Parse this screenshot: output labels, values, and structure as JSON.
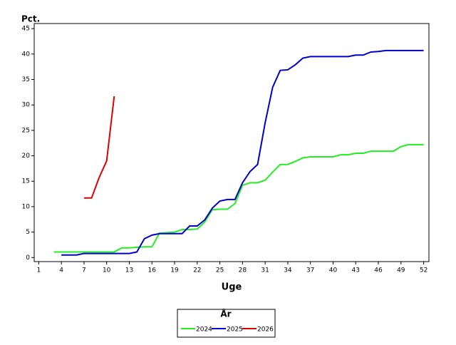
{
  "chart_data": {
    "type": "line",
    "y_label": "Pct.",
    "x_label": "Uge",
    "legend_title": "År",
    "x": [
      1,
      2,
      3,
      4,
      5,
      6,
      7,
      8,
      9,
      10,
      11,
      12,
      13,
      14,
      15,
      16,
      17,
      18,
      19,
      20,
      21,
      22,
      23,
      24,
      25,
      26,
      27,
      28,
      29,
      30,
      31,
      32,
      33,
      34,
      35,
      36,
      37,
      38,
      39,
      40,
      41,
      42,
      43,
      44,
      45,
      46,
      47,
      48,
      49,
      50,
      51,
      52
    ],
    "xlim": [
      0.4,
      52.7
    ],
    "ylim": [
      -0.8,
      46
    ],
    "xticks": [
      1,
      4,
      7,
      10,
      13,
      16,
      19,
      22,
      25,
      28,
      31,
      34,
      37,
      40,
      43,
      46,
      49,
      52
    ],
    "yticks": [
      0,
      5,
      10,
      15,
      20,
      25,
      30,
      35,
      40,
      45
    ],
    "legend": "bottom",
    "series": [
      {
        "name": "2024",
        "color": "#22ee22",
        "values": [
          null,
          null,
          1.1,
          1.1,
          1.1,
          1.1,
          1.1,
          1.1,
          1.1,
          1.1,
          1.1,
          1.9,
          1.9,
          2.0,
          2.1,
          2.1,
          4.8,
          4.9,
          5.0,
          5.5,
          5.5,
          5.6,
          7.0,
          9.4,
          9.5,
          9.5,
          10.6,
          14.2,
          14.7,
          14.7,
          15.2,
          16.8,
          18.3,
          18.3,
          18.9,
          19.6,
          19.8,
          19.8,
          19.8,
          19.8,
          20.2,
          20.2,
          20.5,
          20.5,
          20.9,
          20.9,
          20.9,
          20.9,
          21.8,
          22.2,
          22.2,
          22.2
        ]
      },
      {
        "name": "2025",
        "color": "#0000cc",
        "values": [
          null,
          null,
          null,
          0.5,
          0.5,
          0.5,
          0.8,
          0.8,
          0.8,
          0.8,
          0.8,
          0.8,
          0.8,
          1.1,
          3.7,
          4.4,
          4.7,
          4.7,
          4.7,
          4.7,
          6.2,
          6.2,
          7.4,
          9.7,
          11.1,
          11.4,
          11.4,
          14.7,
          16.9,
          18.3,
          26.5,
          33.5,
          36.8,
          36.9,
          37.9,
          39.2,
          39.5,
          39.5,
          39.5,
          39.5,
          39.5,
          39.5,
          39.8,
          39.8,
          40.4,
          40.5,
          40.7,
          40.7,
          40.7,
          40.7,
          40.7,
          40.7
        ]
      },
      {
        "name": "2026",
        "color": "#dd0000",
        "values": [
          null,
          null,
          null,
          null,
          null,
          null,
          11.7,
          11.7,
          15.7,
          19.0,
          31.7,
          null,
          null,
          null,
          null,
          null,
          null,
          null,
          null,
          null,
          null,
          null,
          null,
          null,
          null,
          null,
          null,
          null,
          null,
          null,
          null,
          null,
          null,
          null,
          null,
          null,
          null,
          null,
          null,
          null,
          null,
          null,
          null,
          null,
          null,
          null,
          null,
          null,
          null,
          null,
          null,
          null
        ]
      }
    ]
  }
}
